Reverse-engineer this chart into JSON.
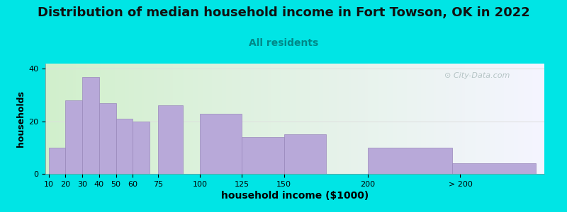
{
  "title": "Distribution of median household income in Fort Towson, OK in 2022",
  "subtitle": "All residents",
  "xlabel": "household income ($1000)",
  "ylabel": "households",
  "bar_labels": [
    "10",
    "20",
    "30",
    "40",
    "50",
    "60",
    "75",
    "100",
    "125",
    "150",
    "200",
    "> 200"
  ],
  "bar_values": [
    10,
    28,
    37,
    27,
    21,
    20,
    26,
    23,
    14,
    15,
    10,
    4
  ],
  "bar_color": "#b8a9d9",
  "bar_edge_color": "#9988bb",
  "background_color": "#00e5e5",
  "ylim": [
    0,
    42
  ],
  "yticks": [
    0,
    20,
    40
  ],
  "title_fontsize": 13,
  "subtitle_fontsize": 10,
  "subtitle_color": "#008888",
  "xlabel_fontsize": 10,
  "ylabel_fontsize": 9,
  "watermark_text": "City-Data.com",
  "watermark_color": "#aabbbb",
  "grid_color": "#dddddd",
  "x_positions": [
    10,
    20,
    30,
    40,
    50,
    60,
    75,
    100,
    125,
    150,
    200,
    250
  ],
  "bar_widths": [
    10,
    10,
    10,
    10,
    10,
    10,
    15,
    25,
    25,
    25,
    50,
    50
  ],
  "xlim": [
    8,
    305
  ],
  "xtick_vals": [
    10,
    20,
    30,
    40,
    50,
    60,
    75,
    100,
    125,
    150,
    200,
    255
  ],
  "xtick_labels": [
    "10",
    "20",
    "30",
    "40",
    "50",
    "60",
    "75",
    "100",
    "125",
    "150",
    "200",
    "> 200"
  ]
}
